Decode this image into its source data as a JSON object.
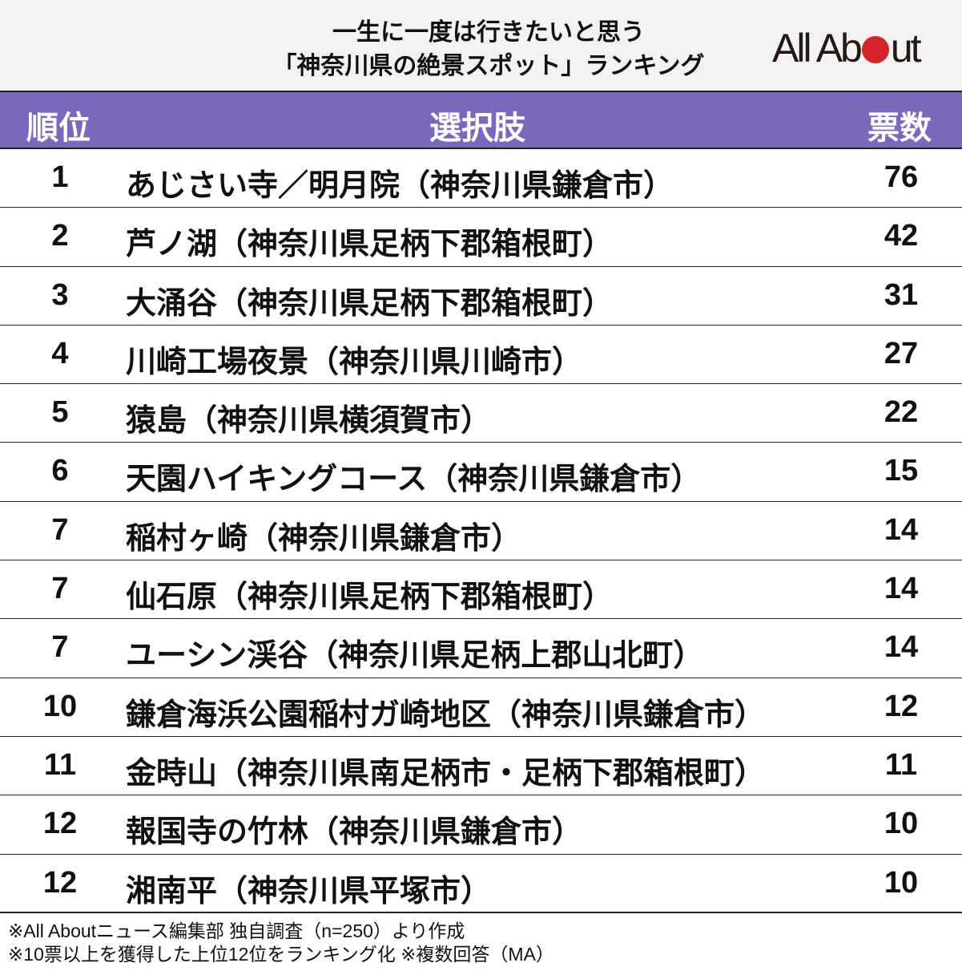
{
  "title": {
    "line1": "一生に一度は行きたいと思う",
    "line2": "「神奈川県の絶景スポット」ランキング"
  },
  "logo": {
    "text_before": "All Ab",
    "text_after": "ut",
    "full_text": "All About",
    "accent_color": "#d7242a"
  },
  "header": {
    "rank": "順位",
    "choice": "選択肢",
    "votes": "票数",
    "color": "#7b68bd"
  },
  "rows": [
    {
      "rank": "1",
      "name": "あじさい寺／明月院（神奈川県鎌倉市）",
      "votes": "76"
    },
    {
      "rank": "2",
      "name": "芦ノ湖（神奈川県足柄下郡箱根町）",
      "votes": "42"
    },
    {
      "rank": "3",
      "name": "大涌谷（神奈川県足柄下郡箱根町）",
      "votes": "31"
    },
    {
      "rank": "4",
      "name": "川崎工場夜景（神奈川県川崎市）",
      "votes": "27"
    },
    {
      "rank": "5",
      "name": "猿島（神奈川県横須賀市）",
      "votes": "22"
    },
    {
      "rank": "6",
      "name": "天園ハイキングコース（神奈川県鎌倉市）",
      "votes": "15"
    },
    {
      "rank": "7",
      "name": "稲村ヶ崎（神奈川県鎌倉市）",
      "votes": "14"
    },
    {
      "rank": "7",
      "name": "仙石原（神奈川県足柄下郡箱根町）",
      "votes": "14"
    },
    {
      "rank": "7",
      "name": "ユーシン渓谷（神奈川県足柄上郡山北町）",
      "votes": "14"
    },
    {
      "rank": "10",
      "name": "鎌倉海浜公園稲村ガ崎地区（神奈川県鎌倉市）",
      "votes": "12"
    },
    {
      "rank": "11",
      "name": "金時山（神奈川県南足柄市・足柄下郡箱根町）",
      "votes": "11"
    },
    {
      "rank": "12",
      "name": "報国寺の竹林（神奈川県鎌倉市）",
      "votes": "10"
    },
    {
      "rank": "12",
      "name": "湘南平（神奈川県平塚市）",
      "votes": "10"
    }
  ],
  "footer": {
    "note1": "※All Aboutニュース編集部 独自調査（n=250）より作成",
    "note2": "※10票以上を獲得した上位12位をランキング化 ※複数回答（MA）"
  }
}
